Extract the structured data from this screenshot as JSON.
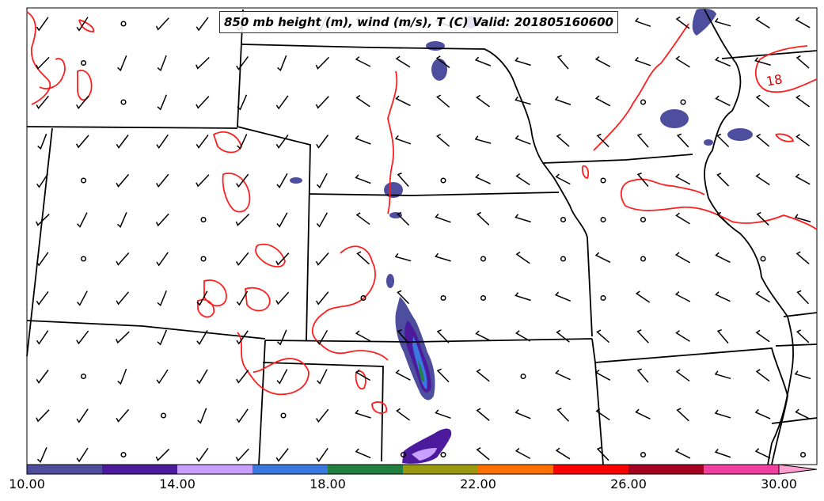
{
  "title": "850 mb height (m), wind (m/s), T (C) Valid: 201805160600",
  "contour_label": "18",
  "colorbar": {
    "ticks": [
      "10.00",
      "14.00",
      "18.00",
      "22.00",
      "26.00",
      "30.00"
    ],
    "min": 10,
    "max": 32,
    "step": 2,
    "colors": [
      "#4e4e9e",
      "#4c1a9c",
      "#c8a0ff",
      "#3a78e0",
      "#208040",
      "#9a9a10",
      "#ff7000",
      "#ff0000",
      "#a80020",
      "#f040a0"
    ],
    "extend_color": "#ffa0d0"
  },
  "colors": {
    "temperature_contour": "#ff1e1e",
    "state_borders": "#000000",
    "wind_barbs": "#000000"
  }
}
